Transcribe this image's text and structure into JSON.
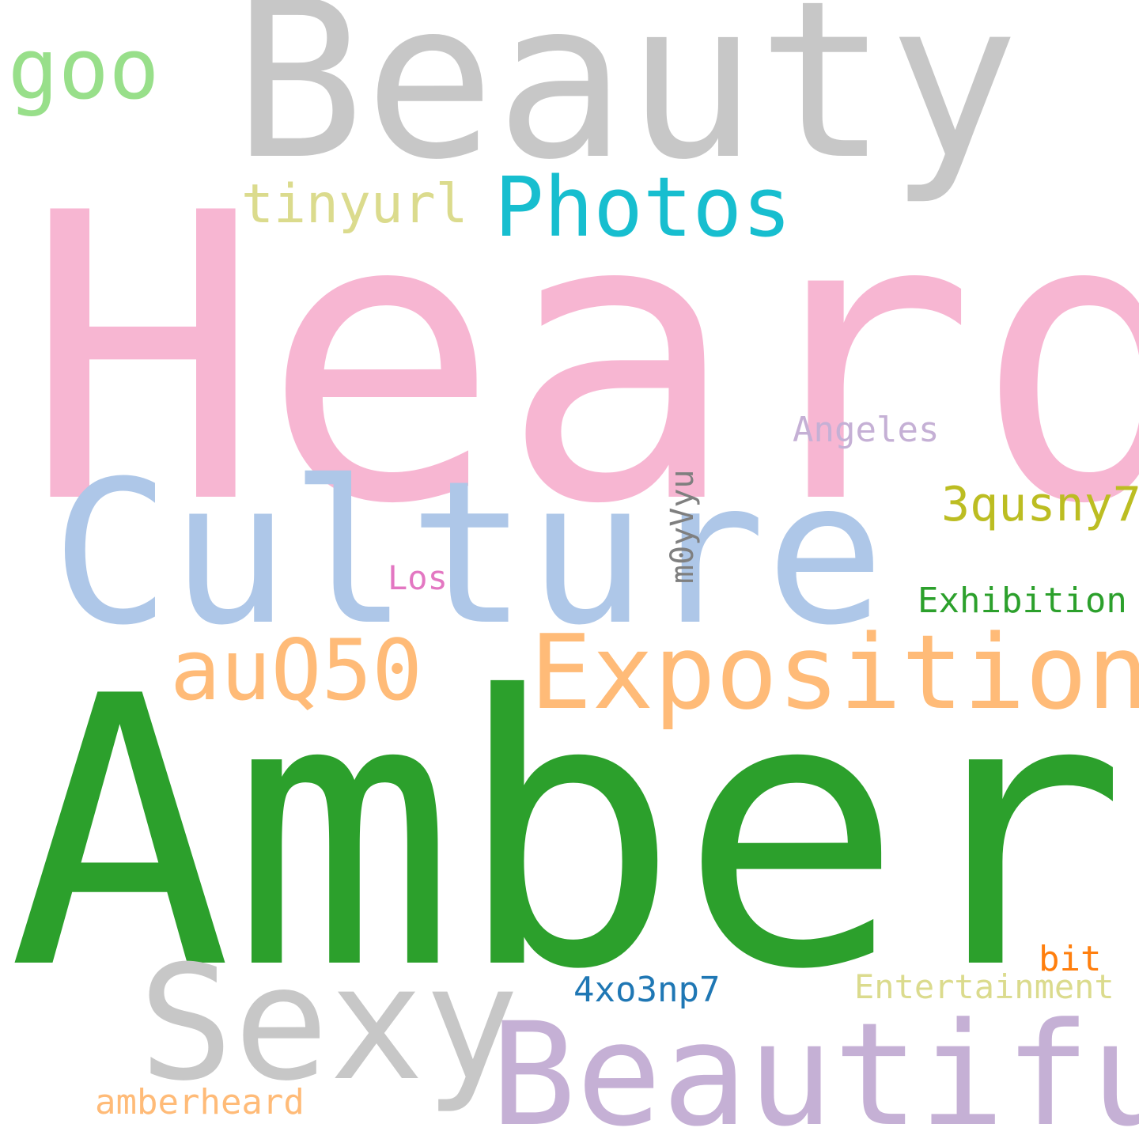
{
  "words": [
    {
      "text": "Heard",
      "color": "#f7b6d2"
    },
    {
      "text": "Amber",
      "color": "#2ca02c"
    },
    {
      "text": "Beauty",
      "color": "#c7c7c7"
    },
    {
      "text": "Culture",
      "color": "#aec7e8"
    },
    {
      "text": "Beautiful",
      "color": "#c5b0d5"
    },
    {
      "text": "Sexy",
      "color": "#c7c7c7"
    },
    {
      "text": "Exposition",
      "color": "#ffbb78"
    },
    {
      "text": "Photos",
      "color": "#17becf"
    },
    {
      "text": "auQ50",
      "color": "#ffbb78"
    },
    {
      "text": "goo",
      "color": "#98df8a"
    },
    {
      "text": "tinyurl",
      "color": "#dbdb8d"
    },
    {
      "text": "3qusny7",
      "color": "#bcbd22"
    },
    {
      "text": "Exhibition",
      "color": "#2ca02c"
    },
    {
      "text": "Angeles",
      "color": "#c5b0d5"
    },
    {
      "text": "m0yVyu",
      "color": "#7f7f7f"
    },
    {
      "text": "Los",
      "color": "#e377c2"
    },
    {
      "text": "bit",
      "color": "#ff7f0e"
    },
    {
      "text": "Entertainment",
      "color": "#dbdb8d"
    },
    {
      "text": "4xo3np7",
      "color": "#1f77b4"
    },
    {
      "text": "amberheard",
      "color": "#ffbb78"
    }
  ]
}
